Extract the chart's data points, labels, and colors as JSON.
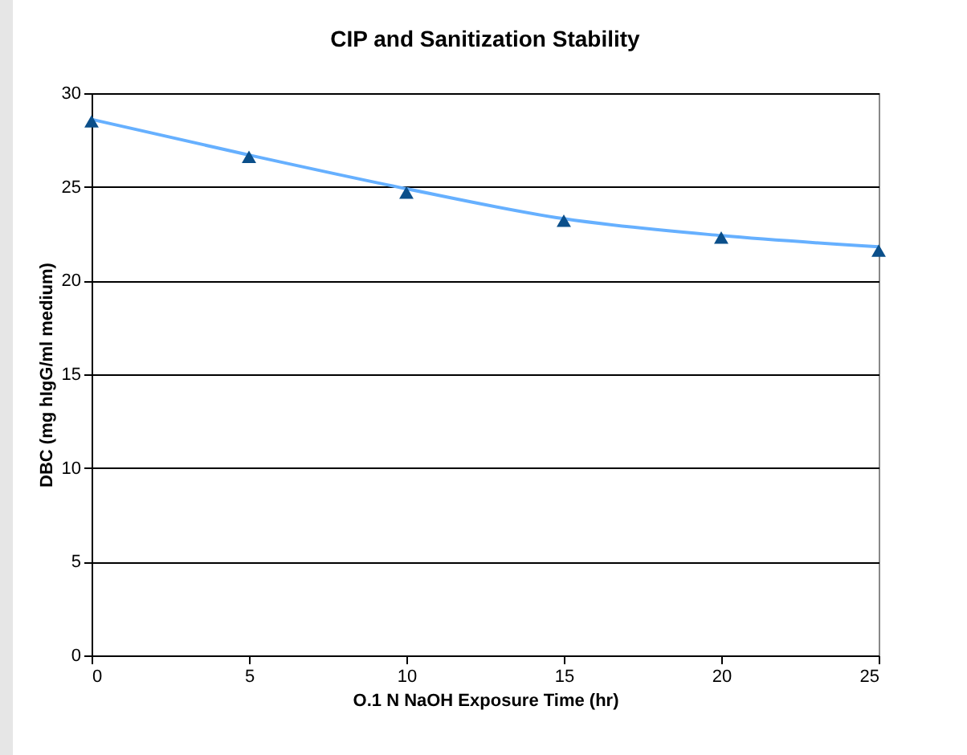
{
  "chart_data": {
    "type": "line",
    "title": "CIP and Sanitization Stability",
    "xlabel": "O.1 N NaOH Exposure Time (hr)",
    "ylabel": "DBC (mg hIgG/ml medium)",
    "x": [
      0,
      5,
      10,
      15,
      20,
      25
    ],
    "series": [
      {
        "type": "line",
        "color": "#66b0ff",
        "marker": "none",
        "values": [
          28.6,
          26.7,
          24.9,
          23.3,
          22.4,
          21.8
        ]
      },
      {
        "type": "scatter",
        "color": "#0b4f8a",
        "marker": "triangle",
        "values": [
          28.5,
          26.6,
          24.7,
          23.2,
          22.3,
          21.6
        ]
      }
    ],
    "xlim": [
      0,
      25
    ],
    "xticks": [
      0,
      5,
      10,
      15,
      20,
      25
    ],
    "ylim": [
      0,
      30
    ],
    "yticks": [
      0,
      5,
      10,
      15,
      20,
      25,
      30
    ],
    "grid": "y"
  }
}
